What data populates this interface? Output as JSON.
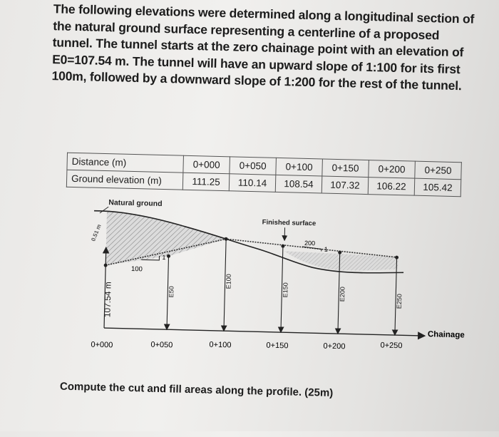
{
  "problem": {
    "paragraph": "The following elevations were determined along a longitudinal section of the natural ground surface representing a centerline of a proposed tunnel. The tunnel starts at the zero chainage point with an elevation of E0=107.54 m. The tunnel will have an upward slope of 1:100 for its first 100m, followed by a downward slope of 1:200 for the rest of the tunnel."
  },
  "table": {
    "row1_label": "Distance (m)",
    "row2_label": "Ground elevation (m)",
    "distances": [
      "0+000",
      "0+050",
      "0+100",
      "0+150",
      "0+200",
      "0+250"
    ],
    "elevations": [
      "111.25",
      "110.14",
      "108.54",
      "107.32",
      "106.22",
      "105.42"
    ]
  },
  "figure": {
    "natural_ground_label": "Natural ground",
    "finished_surface_label": "Finished surface",
    "slope1_run": "100",
    "slope1_rise": "1",
    "slope2_run": "200",
    "slope2_rise": "1",
    "e0_label": "107.54 m",
    "start_stamp": "0.51 m",
    "e_labels": [
      "E50",
      "E100",
      "E150",
      "E200",
      "E250"
    ],
    "chainage_ticks": [
      "0+000",
      "0+050",
      "0+100",
      "0+150",
      "0+200",
      "0+250"
    ],
    "axis_label": "Chainage"
  },
  "question": "Compute the cut and fill areas along the profile. (25m)"
}
